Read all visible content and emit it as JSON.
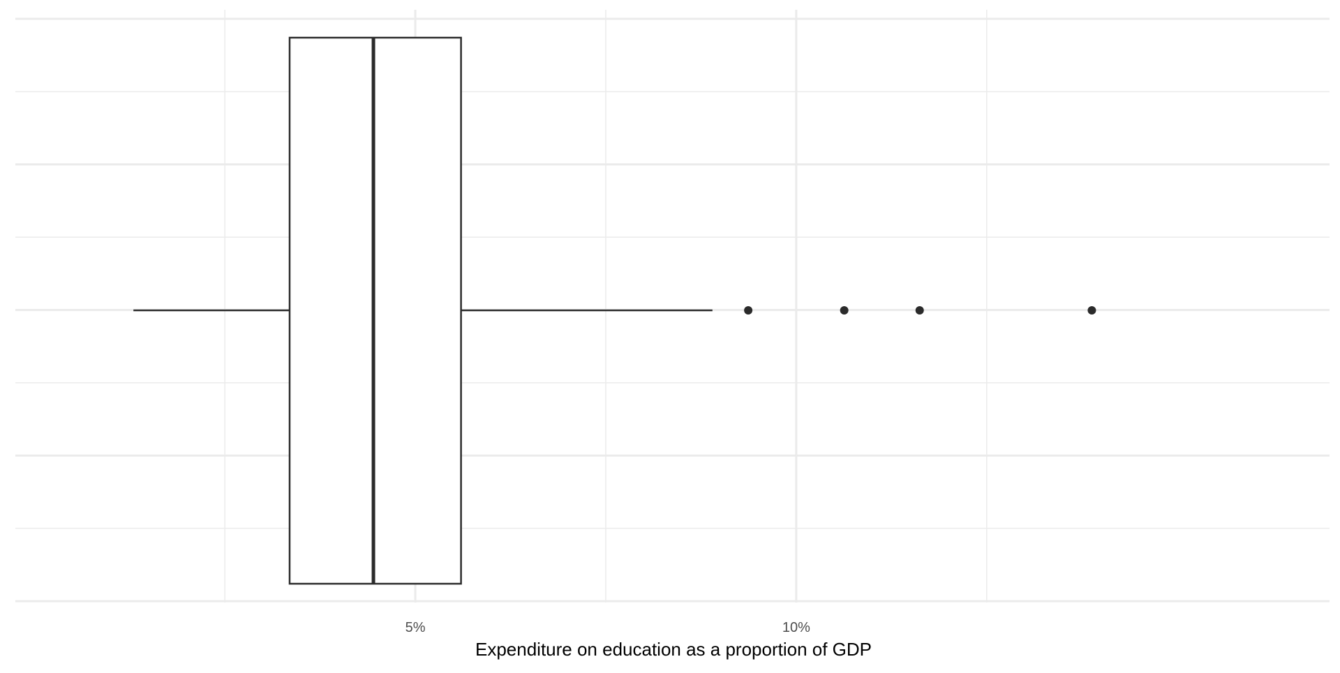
{
  "chart_data": {
    "type": "boxplot",
    "orientation": "horizontal",
    "xlabel": "Expenditure on education as a proportion of GDP",
    "ylabel": "",
    "x_ticks": [
      {
        "value": 5,
        "label": "5%"
      },
      {
        "value": 10,
        "label": "10%"
      }
    ],
    "x_minor_ticks": [
      2.5,
      7.5,
      12.5
    ],
    "xlim": [
      -0.25,
      17.0
    ],
    "grid": true,
    "box": {
      "whisker_low": 1.3,
      "q1": 3.35,
      "median": 4.45,
      "q3": 5.6,
      "whisker_high": 8.9
    },
    "outliers": [
      9.37,
      10.63,
      11.62,
      13.88
    ],
    "colors": {
      "box_fill": "#ffffff",
      "box_stroke": "#2b2b2b",
      "grid": "#ebebeb",
      "text": "#4d4d4d",
      "title_text": "#000000"
    }
  }
}
